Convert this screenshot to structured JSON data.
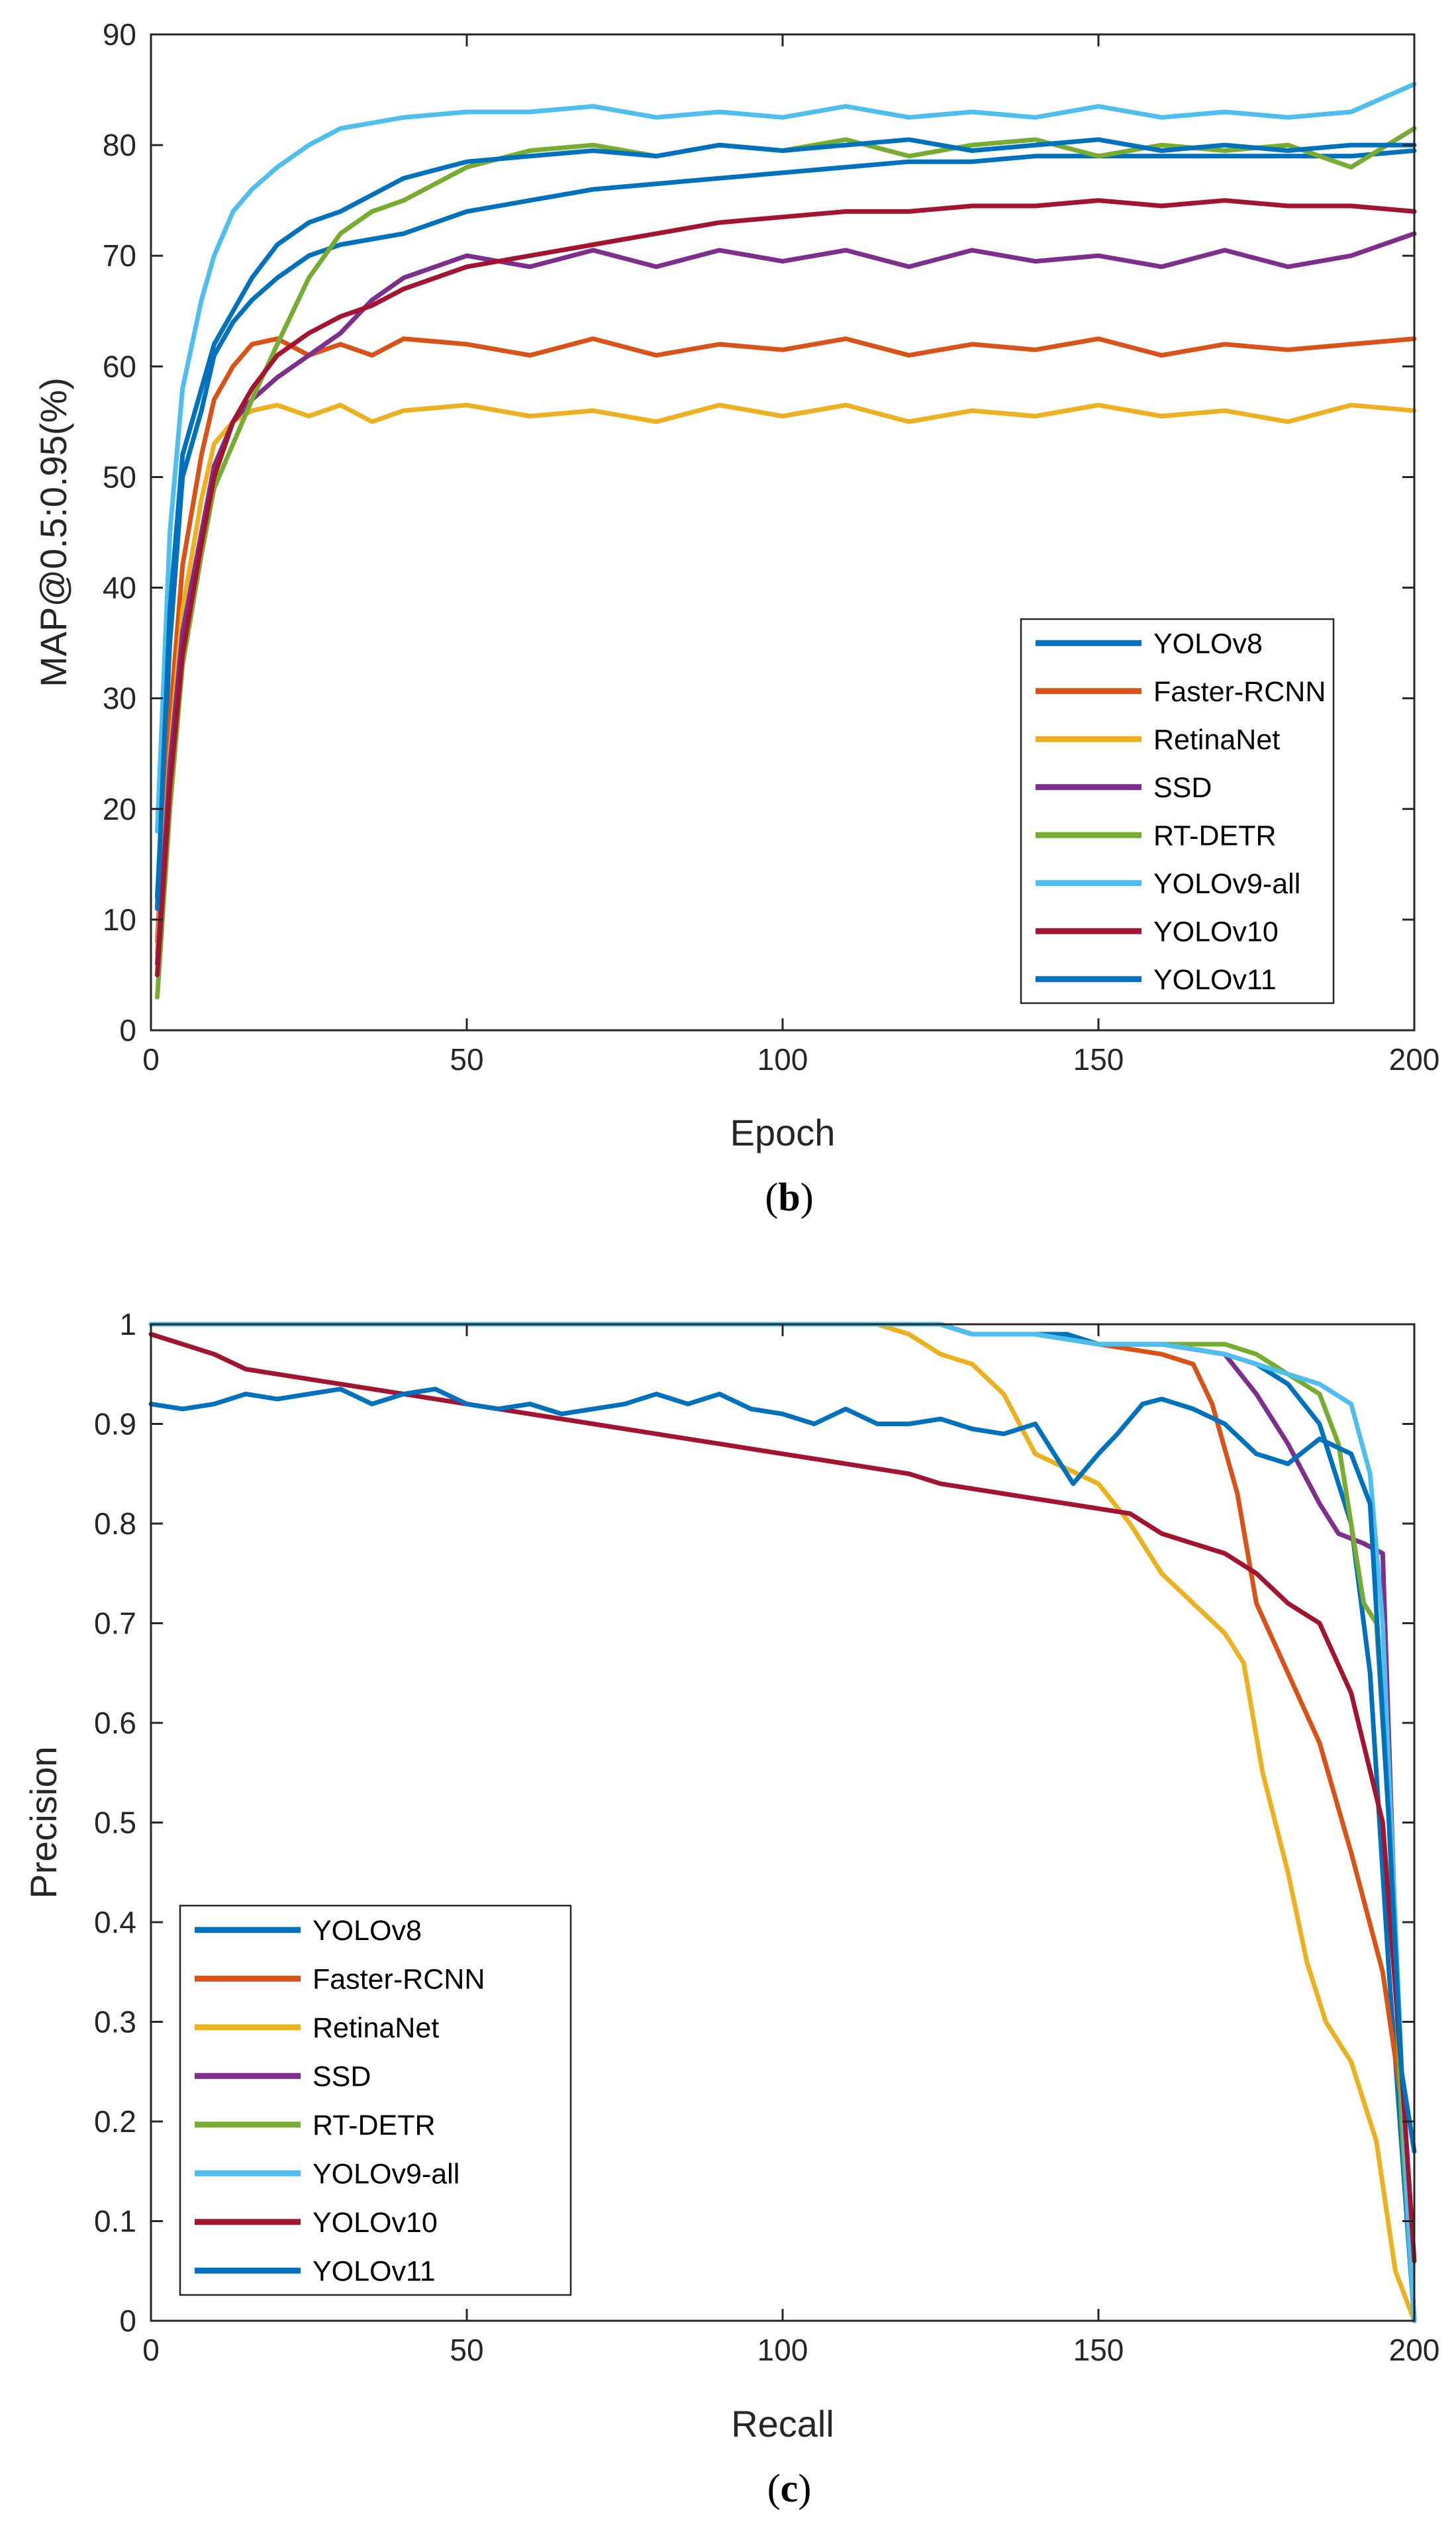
{
  "chart_data": [
    {
      "type": "line",
      "caption_open": "(",
      "caption_letter": "b",
      "caption_close": ")",
      "xlabel": "Epoch",
      "ylabel": "MAP@0.5:0.95(%)",
      "xlim": [
        0,
        200
      ],
      "ylim": [
        0,
        90
      ],
      "xticks": [
        0,
        50,
        100,
        150,
        200
      ],
      "yticks": [
        0,
        10,
        20,
        30,
        40,
        50,
        60,
        70,
        80,
        90
      ],
      "legend_position": "bottom-right",
      "grid": false,
      "series": [
        {
          "name": "YOLOv8",
          "color": "#0072BD",
          "x": [
            1,
            3,
            5,
            8,
            10,
            13,
            16,
            20,
            25,
            30,
            40,
            50,
            60,
            70,
            80,
            90,
            100,
            110,
            120,
            130,
            140,
            150,
            160,
            170,
            180,
            190,
            200
          ],
          "y": [
            12,
            35,
            50,
            56,
            61,
            64,
            66,
            68,
            70,
            71,
            72,
            74,
            75,
            76,
            76.5,
            77,
            77.5,
            78,
            78.5,
            78.5,
            79,
            79,
            79,
            79,
            79,
            79,
            79.5
          ]
        },
        {
          "name": "Faster-RCNN",
          "color": "#D95319",
          "x": [
            1,
            3,
            5,
            8,
            10,
            13,
            16,
            20,
            25,
            30,
            35,
            40,
            50,
            60,
            70,
            80,
            90,
            100,
            110,
            120,
            130,
            140,
            150,
            160,
            170,
            180,
            190,
            200
          ],
          "y": [
            8,
            28,
            42,
            52,
            57,
            60,
            62,
            62.5,
            61,
            62,
            61,
            62.5,
            62,
            61,
            62.5,
            61,
            62,
            61.5,
            62.5,
            61,
            62,
            61.5,
            62.5,
            61,
            62,
            61.5,
            62,
            62.5
          ]
        },
        {
          "name": "RetinaNet",
          "color": "#EDB120",
          "x": [
            1,
            3,
            5,
            8,
            10,
            13,
            16,
            20,
            25,
            30,
            35,
            40,
            50,
            60,
            70,
            80,
            90,
            100,
            110,
            120,
            130,
            140,
            150,
            160,
            170,
            180,
            190,
            200
          ],
          "y": [
            7,
            25,
            38,
            48,
            53,
            55,
            56,
            56.5,
            55.5,
            56.5,
            55,
            56,
            56.5,
            55.5,
            56,
            55,
            56.5,
            55.5,
            56.5,
            55,
            56,
            55.5,
            56.5,
            55.5,
            56,
            55,
            56.5,
            56
          ]
        },
        {
          "name": "SSD",
          "color": "#7E2F8E",
          "x": [
            1,
            3,
            5,
            8,
            10,
            13,
            16,
            20,
            25,
            30,
            35,
            40,
            50,
            60,
            70,
            80,
            90,
            100,
            110,
            120,
            130,
            140,
            150,
            160,
            170,
            180,
            190,
            200
          ],
          "y": [
            6,
            24,
            36,
            45,
            51,
            55,
            57,
            59,
            61,
            63,
            66,
            68,
            70,
            69,
            70.5,
            69,
            70.5,
            69.5,
            70.5,
            69,
            70.5,
            69.5,
            70,
            69,
            70.5,
            69,
            70,
            72
          ]
        },
        {
          "name": "RT-DETR",
          "color": "#77AC30",
          "x": [
            1,
            3,
            5,
            8,
            10,
            13,
            16,
            20,
            25,
            30,
            35,
            40,
            50,
            60,
            70,
            80,
            90,
            100,
            110,
            120,
            130,
            140,
            150,
            160,
            170,
            180,
            190,
            200
          ],
          "y": [
            3,
            20,
            33,
            43,
            49,
            53,
            57,
            62,
            68,
            72,
            74,
            75,
            78,
            79.5,
            80,
            79,
            80,
            79.5,
            80.5,
            79,
            80,
            80.5,
            79,
            80,
            79.5,
            80,
            78,
            81.5
          ]
        },
        {
          "name": "YOLOv9-all",
          "color": "#4DBEEE",
          "x": [
            1,
            3,
            5,
            8,
            10,
            13,
            16,
            20,
            25,
            30,
            35,
            40,
            50,
            60,
            70,
            80,
            90,
            100,
            110,
            120,
            130,
            140,
            150,
            160,
            170,
            180,
            190,
            200
          ],
          "y": [
            18,
            45,
            58,
            66,
            70,
            74,
            76,
            78,
            80,
            81.5,
            82,
            82.5,
            83,
            83,
            83.5,
            82.5,
            83,
            82.5,
            83.5,
            82.5,
            83,
            82.5,
            83.5,
            82.5,
            83,
            82.5,
            83,
            85.5
          ]
        },
        {
          "name": "YOLOv10",
          "color": "#A2142F",
          "x": [
            1,
            3,
            5,
            8,
            10,
            13,
            16,
            20,
            25,
            30,
            35,
            40,
            50,
            60,
            70,
            80,
            90,
            100,
            110,
            120,
            130,
            140,
            150,
            160,
            170,
            180,
            190,
            200
          ],
          "y": [
            5,
            22,
            34,
            44,
            50,
            55,
            58,
            61,
            63,
            64.5,
            65.5,
            67,
            69,
            70,
            71,
            72,
            73,
            73.5,
            74,
            74,
            74.5,
            74.5,
            75,
            74.5,
            75,
            74.5,
            74.5,
            74
          ]
        },
        {
          "name": "YOLOv11",
          "color": "#0072BD",
          "x": [
            1,
            3,
            5,
            8,
            10,
            13,
            16,
            20,
            25,
            30,
            35,
            40,
            50,
            60,
            70,
            80,
            90,
            100,
            110,
            120,
            130,
            140,
            150,
            160,
            170,
            180,
            190,
            200
          ],
          "y": [
            11,
            38,
            52,
            58,
            62,
            65,
            68,
            71,
            73,
            74,
            75.5,
            77,
            78.5,
            79,
            79.5,
            79,
            80,
            79.5,
            80,
            80.5,
            79.5,
            80,
            80.5,
            79.5,
            80,
            79.5,
            80,
            80
          ]
        }
      ]
    },
    {
      "type": "line",
      "caption_open": "(",
      "caption_letter": "c",
      "caption_close": ")",
      "xlabel": "Recall",
      "ylabel": "Precision",
      "xlim": [
        0,
        200
      ],
      "ylim": [
        0,
        1
      ],
      "xticks": [
        0,
        50,
        100,
        150,
        200
      ],
      "yticks": [
        0,
        0.1,
        0.2,
        0.3,
        0.4,
        0.5,
        0.6,
        0.7,
        0.8,
        0.9,
        1
      ],
      "legend_position": "bottom-left",
      "grid": false,
      "series": [
        {
          "name": "YOLOv8",
          "color": "#0072BD",
          "x": [
            0,
            120,
            125,
            130,
            140,
            145,
            150,
            160,
            170,
            175,
            180,
            185,
            190,
            193,
            196,
            200
          ],
          "y": [
            1,
            1,
            1,
            0.99,
            0.99,
            0.99,
            0.98,
            0.98,
            0.97,
            0.96,
            0.94,
            0.9,
            0.8,
            0.65,
            0.35,
            0
          ]
        },
        {
          "name": "Faster-RCNN",
          "color": "#D95319",
          "x": [
            0,
            120,
            125,
            130,
            140,
            150,
            160,
            165,
            168,
            172,
            175,
            180,
            185,
            190,
            195,
            198,
            200
          ],
          "y": [
            1,
            1,
            1,
            0.99,
            0.99,
            0.98,
            0.97,
            0.96,
            0.92,
            0.83,
            0.72,
            0.65,
            0.58,
            0.47,
            0.35,
            0.22,
            0
          ]
        },
        {
          "name": "RetinaNet",
          "color": "#EDB120",
          "x": [
            0,
            115,
            120,
            125,
            130,
            135,
            140,
            150,
            155,
            160,
            165,
            170,
            173,
            176,
            180,
            183,
            186,
            190,
            194,
            197,
            200
          ],
          "y": [
            1,
            1,
            0.99,
            0.97,
            0.96,
            0.93,
            0.87,
            0.84,
            0.8,
            0.75,
            0.72,
            0.69,
            0.66,
            0.55,
            0.45,
            0.36,
            0.3,
            0.26,
            0.18,
            0.05,
            0
          ]
        },
        {
          "name": "SSD",
          "color": "#7E2F8E",
          "x": [
            0,
            120,
            125,
            130,
            140,
            150,
            160,
            170,
            175,
            180,
            185,
            188,
            192,
            195,
            198,
            200
          ],
          "y": [
            1,
            1,
            1,
            0.99,
            0.99,
            0.98,
            0.98,
            0.97,
            0.93,
            0.88,
            0.82,
            0.79,
            0.78,
            0.77,
            0.2,
            0
          ]
        },
        {
          "name": "RT-DETR",
          "color": "#77AC30",
          "x": [
            0,
            120,
            125,
            130,
            140,
            150,
            160,
            170,
            175,
            180,
            185,
            188,
            190,
            192,
            194,
            196,
            198,
            200
          ],
          "y": [
            1,
            1,
            1,
            0.99,
            0.99,
            0.98,
            0.98,
            0.98,
            0.97,
            0.95,
            0.93,
            0.88,
            0.8,
            0.72,
            0.7,
            0.5,
            0.2,
            0
          ]
        },
        {
          "name": "YOLOv9-all",
          "color": "#4DBEEE",
          "x": [
            0,
            120,
            125,
            130,
            140,
            150,
            160,
            170,
            175,
            180,
            185,
            190,
            193,
            195,
            197,
            199,
            200
          ],
          "y": [
            1,
            1,
            1,
            0.99,
            0.99,
            0.98,
            0.98,
            0.97,
            0.96,
            0.95,
            0.94,
            0.92,
            0.85,
            0.7,
            0.4,
            0.1,
            0
          ]
        },
        {
          "name": "YOLOv10",
          "color": "#A2142F",
          "x": [
            0,
            5,
            10,
            15,
            20,
            30,
            40,
            50,
            60,
            70,
            80,
            90,
            100,
            110,
            120,
            125,
            130,
            140,
            150,
            155,
            160,
            170,
            175,
            180,
            185,
            190,
            195,
            198,
            200
          ],
          "y": [
            0.99,
            0.98,
            0.97,
            0.955,
            0.95,
            0.94,
            0.93,
            0.92,
            0.91,
            0.9,
            0.89,
            0.88,
            0.87,
            0.86,
            0.85,
            0.84,
            0.835,
            0.825,
            0.815,
            0.81,
            0.79,
            0.77,
            0.75,
            0.72,
            0.7,
            0.63,
            0.5,
            0.25,
            0.06
          ]
        },
        {
          "name": "YOLOv11",
          "color": "#0072BD",
          "x": [
            0,
            5,
            10,
            15,
            20,
            25,
            30,
            35,
            40,
            45,
            50,
            55,
            60,
            65,
            70,
            75,
            80,
            85,
            90,
            95,
            100,
            105,
            110,
            115,
            120,
            125,
            130,
            135,
            140,
            143,
            146,
            150,
            153,
            157,
            160,
            165,
            170,
            175,
            180,
            185,
            190,
            193,
            196,
            198,
            200
          ],
          "y": [
            0.92,
            0.915,
            0.92,
            0.93,
            0.925,
            0.93,
            0.935,
            0.92,
            0.93,
            0.935,
            0.92,
            0.915,
            0.92,
            0.91,
            0.915,
            0.92,
            0.93,
            0.92,
            0.93,
            0.915,
            0.91,
            0.9,
            0.915,
            0.9,
            0.9,
            0.905,
            0.895,
            0.89,
            0.9,
            0.87,
            0.84,
            0.87,
            0.89,
            0.92,
            0.925,
            0.915,
            0.9,
            0.87,
            0.86,
            0.885,
            0.87,
            0.82,
            0.5,
            0.25,
            0.17
          ]
        }
      ]
    }
  ]
}
